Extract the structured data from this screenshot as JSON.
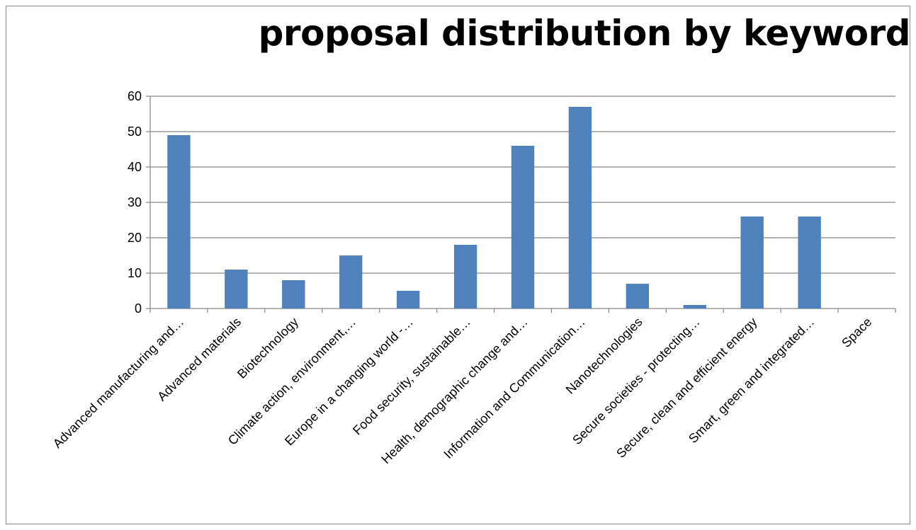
{
  "chart_data": {
    "type": "bar",
    "title": "proposal distribution by keyword",
    "categories": [
      "Advanced manufacturing and…",
      "Advanced materials",
      "Biotechnology",
      "Climate action, environment,…",
      "Europe in a changing world -…",
      "Food security, sustainable…",
      "Health, demographic change and…",
      "Information and Communication…",
      "Nanotechnologies",
      "Secure societies - protecting…",
      "Secure, clean and efficient energy",
      "Smart, green and integrated…",
      "Space"
    ],
    "values": [
      49,
      11,
      8,
      15,
      5,
      18,
      46,
      57,
      7,
      1,
      26,
      26,
      0
    ],
    "ylim": [
      0,
      60
    ],
    "yticks": [
      0,
      10,
      20,
      30,
      40,
      50,
      60
    ],
    "grid": true,
    "bar_color": "#4f81bd",
    "grid_color": "#868686"
  }
}
